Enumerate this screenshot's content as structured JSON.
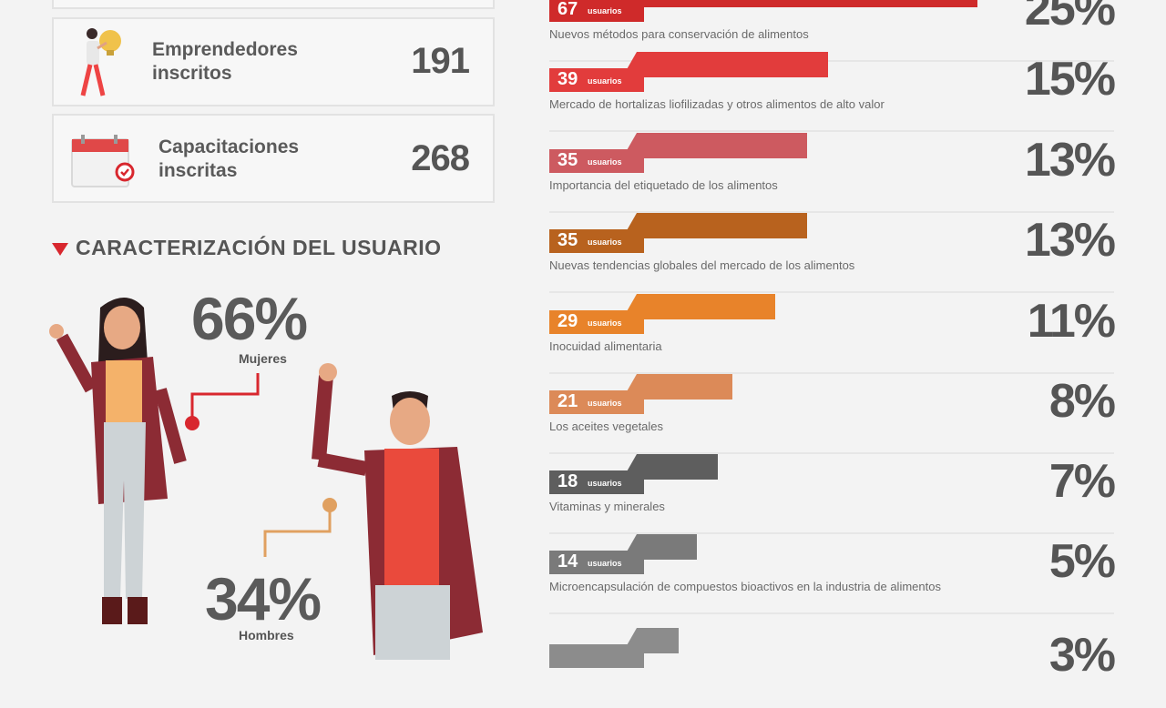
{
  "stats": [
    {
      "label": "Emprendedores inscritos",
      "value": "191"
    },
    {
      "label": "Capacitaciones inscritas",
      "value": "268"
    }
  ],
  "section_title": "CARACTERIZACIÓN DEL USUARIO",
  "women": {
    "pct": "66%",
    "label": "Mujeres"
  },
  "men": {
    "pct": "34%",
    "label": "Hombres"
  },
  "colors": {
    "red": "#d8272e",
    "gray_text": "#555555"
  },
  "topics": [
    {
      "count": "67",
      "unit": "usuarios",
      "desc": "Nuevos métodos para conservación de alimentos",
      "pct": "25%",
      "color": "#cf2a2a",
      "share": 1.0
    },
    {
      "count": "39",
      "unit": "usuarios",
      "desc": "Mercado de hortalizas liofilizadas y otros alimentos de alto valor",
      "pct": "15%",
      "color": "#e23c3c",
      "share": 0.58
    },
    {
      "count": "35",
      "unit": "usuarios",
      "desc": "Importancia del etiquetado de los alimentos",
      "pct": "13%",
      "color": "#cd5a60",
      "share": 0.52
    },
    {
      "count": "35",
      "unit": "usuarios",
      "desc": "Nuevas tendencias globales del mercado de los alimentos",
      "pct": "13%",
      "color": "#b8621e",
      "share": 0.52
    },
    {
      "count": "29",
      "unit": "usuarios",
      "desc": "Inocuidad alimentaria",
      "pct": "11%",
      "color": "#e8832a",
      "share": 0.43
    },
    {
      "count": "21",
      "unit": "usuarios",
      "desc": "Los aceites vegetales",
      "pct": "8%",
      "color": "#dc8a58",
      "share": 0.31
    },
    {
      "count": "18",
      "unit": "usuarios",
      "desc": "Vitaminas y minerales",
      "pct": "7%",
      "color": "#5e5e5e",
      "share": 0.27
    },
    {
      "count": "14",
      "unit": "usuarios",
      "desc": "Microencapsulación de compuestos bioactivos en la industria de alimentos",
      "pct": "5%",
      "color": "#7a7a7a",
      "share": 0.21
    },
    {
      "count": "",
      "unit": "",
      "desc": "",
      "pct": "3%",
      "color": "#8c8c8c",
      "share": 0.16
    }
  ]
}
